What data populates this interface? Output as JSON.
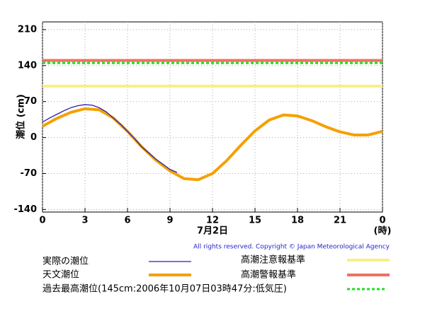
{
  "chart_data": {
    "type": "line",
    "y_label": "潮位 (cm)",
    "x_label": "7月2日",
    "x_unit": "(時)",
    "copyright": "All rights reserved. Copyright © Japan Meteorological Agency",
    "xlim": [
      0,
      24
    ],
    "xticks": [
      0,
      3,
      6,
      9,
      12,
      15,
      18,
      21,
      {
        "value": 24,
        "label": "0"
      }
    ],
    "ylim": [
      -145,
      225
    ],
    "yticks": [
      210,
      140,
      70,
      0,
      -70,
      -140
    ],
    "grid": true,
    "series": [
      {
        "name": "実際の潮位",
        "color": "#2a1fb0",
        "x": [
          0,
          0.5,
          1,
          1.5,
          2,
          2.5,
          3,
          3.5,
          4,
          4.5,
          5,
          5.5,
          6,
          6.5,
          7,
          7.5,
          8,
          8.5,
          9,
          9.5
        ],
        "values": [
          30,
          38,
          45,
          52,
          58,
          62,
          64,
          63,
          58,
          50,
          38,
          26,
          12,
          -2,
          -18,
          -30,
          -42,
          -52,
          -62,
          -68
        ]
      },
      {
        "name": "天文潮位",
        "color": "#f5a000",
        "x": [
          0,
          1,
          2,
          3,
          4,
          5,
          6,
          7,
          8,
          9,
          10,
          11,
          12,
          13,
          14,
          15,
          16,
          17,
          18,
          19,
          20,
          21,
          22,
          23,
          24
        ],
        "values": [
          22,
          37,
          49,
          56,
          54,
          38,
          12,
          -18,
          -44,
          -65,
          -80,
          -82,
          -70,
          -45,
          -15,
          13,
          34,
          44,
          42,
          33,
          21,
          11,
          5,
          5,
          12
        ]
      }
    ],
    "reference_lines": [
      {
        "name": "高潮注意報基準",
        "value": 100,
        "color": "#f8f080",
        "style": "solid"
      },
      {
        "name": "高潮警報基準",
        "value": 150,
        "color": "#f07060",
        "style": "solid"
      },
      {
        "name": "過去最高潮位(145cm:2006年10月07日03時47分:低気圧)",
        "value": 145,
        "color": "#22dd22",
        "style": "dotted"
      }
    ]
  }
}
